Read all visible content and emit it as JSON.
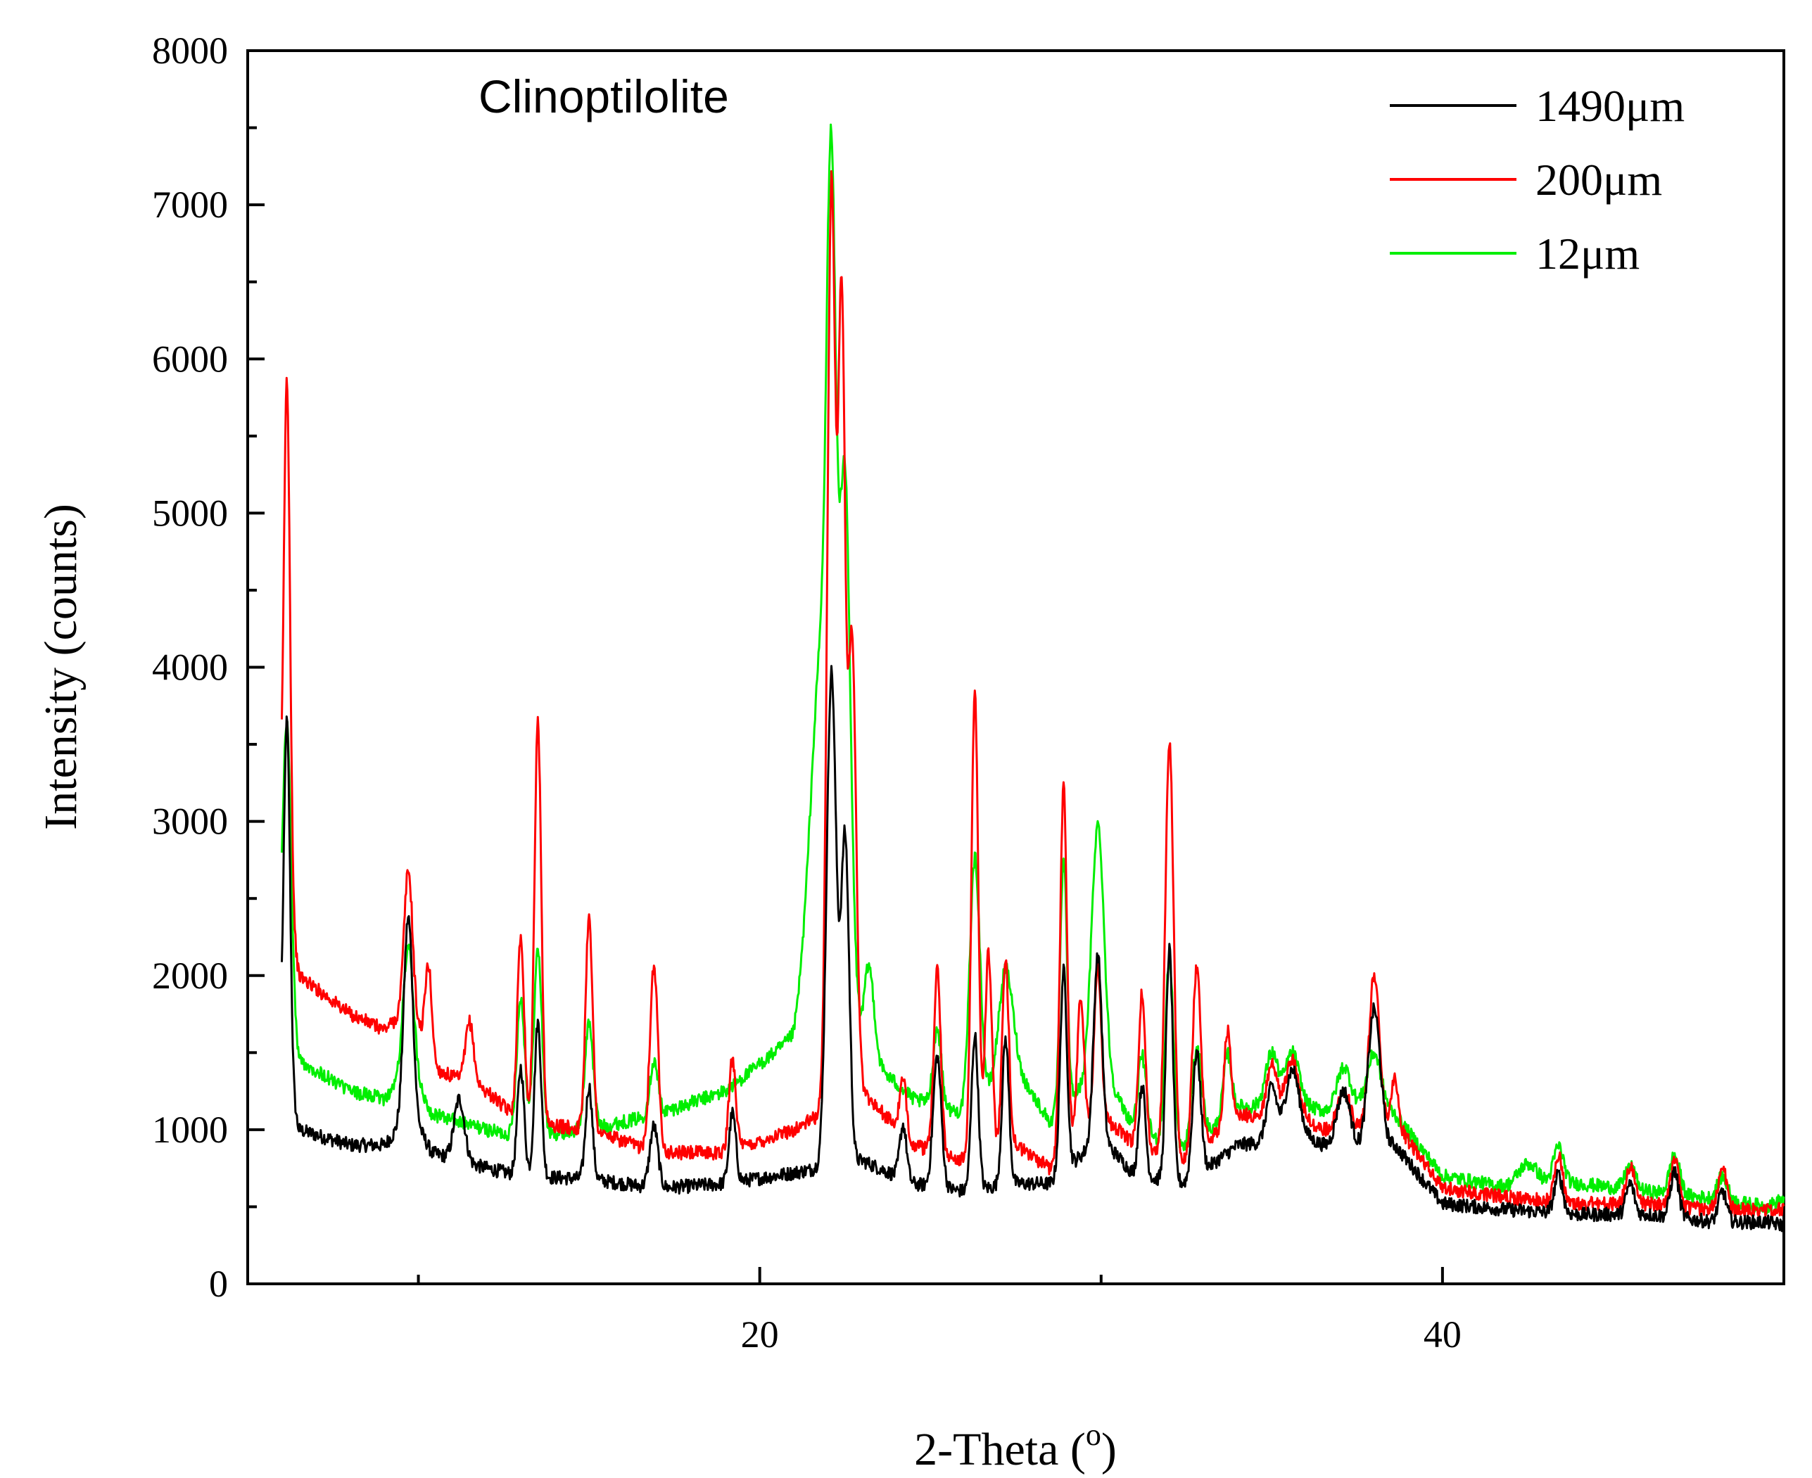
{
  "chart_data": {
    "type": "line",
    "annotation": "Clinoptilolite",
    "xlabel": "2-Theta (",
    "xlabel_sup": "o",
    "xlabel_end": ")",
    "ylabel": "Intensity (counts)",
    "xlim": [
      5,
      50
    ],
    "ylim": [
      0,
      8000
    ],
    "x_ticks": [
      20,
      40
    ],
    "y_ticks": [
      0,
      1000,
      2000,
      3000,
      4000,
      5000,
      6000,
      7000,
      8000
    ],
    "legend_position": "top-right",
    "series": [
      {
        "name": "1490μm",
        "color": "#000000",
        "baseline": [
          [
            6,
            1500
          ],
          [
            6.5,
            1000
          ],
          [
            8,
            900
          ],
          [
            9,
            900
          ],
          [
            9.8,
            1100
          ],
          [
            10.4,
            850
          ],
          [
            12,
            750
          ],
          [
            13,
            700
          ],
          [
            15,
            680
          ],
          [
            17,
            620
          ],
          [
            19,
            650
          ],
          [
            21,
            720
          ],
          [
            23,
            800
          ],
          [
            24.5,
            650
          ],
          [
            26,
            600
          ],
          [
            27.5,
            650
          ],
          [
            28.5,
            650
          ],
          [
            30,
            950
          ],
          [
            31,
            700
          ],
          [
            32.5,
            650
          ],
          [
            34,
            900
          ],
          [
            36,
            950
          ],
          [
            37,
            850
          ],
          [
            38.6,
            900
          ],
          [
            40,
            520
          ],
          [
            42,
            480
          ],
          [
            44,
            450
          ],
          [
            46,
            450
          ],
          [
            48,
            400
          ],
          [
            49.5,
            400
          ],
          [
            50,
            380
          ]
        ],
        "peaks": [
          [
            6.15,
            2300,
            0.09
          ],
          [
            9.7,
            1300,
            0.13
          ],
          [
            11.2,
            400,
            0.15
          ],
          [
            13.0,
            700,
            0.1
          ],
          [
            13.5,
            1000,
            0.1
          ],
          [
            15.0,
            600,
            0.1
          ],
          [
            16.9,
            400,
            0.12
          ],
          [
            19.2,
            450,
            0.1
          ],
          [
            22.1,
            3200,
            0.14
          ],
          [
            22.5,
            2100,
            0.12
          ],
          [
            24.2,
            350,
            0.1
          ],
          [
            25.2,
            850,
            0.12
          ],
          [
            26.3,
            1000,
            0.1
          ],
          [
            27.2,
            950,
            0.1
          ],
          [
            28.9,
            1300,
            0.1
          ],
          [
            29.9,
            1200,
            0.12
          ],
          [
            31.2,
            600,
            0.1
          ],
          [
            32.0,
            1500,
            0.1
          ],
          [
            32.8,
            800,
            0.12
          ],
          [
            35.0,
            350,
            0.15
          ],
          [
            35.6,
            450,
            0.2
          ],
          [
            37.1,
            400,
            0.2
          ],
          [
            38.0,
            900,
            0.18
          ],
          [
            43.4,
            250,
            0.12
          ],
          [
            45.5,
            200,
            0.12
          ],
          [
            46.8,
            300,
            0.12
          ],
          [
            48.2,
            200,
            0.12
          ]
        ]
      },
      {
        "name": "200μm",
        "color": "#ff0000",
        "baseline": [
          [
            6,
            2800
          ],
          [
            6.5,
            2000
          ],
          [
            8,
            1750
          ],
          [
            9,
            1650
          ],
          [
            9.8,
            1800
          ],
          [
            10.4,
            1400
          ],
          [
            12,
            1250
          ],
          [
            13,
            1050
          ],
          [
            15,
            1000
          ],
          [
            17,
            850
          ],
          [
            19,
            850
          ],
          [
            21,
            1000
          ],
          [
            23,
            1250
          ],
          [
            24.5,
            900
          ],
          [
            26,
            800
          ],
          [
            27.5,
            900
          ],
          [
            28.5,
            750
          ],
          [
            30,
            1100
          ],
          [
            31,
            900
          ],
          [
            32.5,
            800
          ],
          [
            34,
            1100
          ],
          [
            36,
            1050
          ],
          [
            37,
            950
          ],
          [
            38.6,
            1050
          ],
          [
            40,
            620
          ],
          [
            42,
            560
          ],
          [
            44,
            520
          ],
          [
            46,
            520
          ],
          [
            48,
            480
          ],
          [
            49.5,
            480
          ],
          [
            50,
            480
          ]
        ],
        "peaks": [
          [
            6.15,
            3300,
            0.09
          ],
          [
            9.7,
            900,
            0.12
          ],
          [
            10.3,
            600,
            0.1
          ],
          [
            11.5,
            400,
            0.12
          ],
          [
            13.0,
            1200,
            0.1
          ],
          [
            13.5,
            2600,
            0.1
          ],
          [
            15.0,
            1400,
            0.1
          ],
          [
            16.9,
            1200,
            0.12
          ],
          [
            19.2,
            600,
            0.1
          ],
          [
            22.1,
            6000,
            0.12
          ],
          [
            22.4,
            5000,
            0.1
          ],
          [
            22.7,
            3000,
            0.12
          ],
          [
            24.2,
            350,
            0.1
          ],
          [
            25.2,
            1200,
            0.1
          ],
          [
            26.3,
            3000,
            0.1
          ],
          [
            26.7,
            1300,
            0.1
          ],
          [
            27.2,
            1200,
            0.1
          ],
          [
            28.9,
            2400,
            0.1
          ],
          [
            29.4,
            900,
            0.1
          ],
          [
            29.9,
            1000,
            0.1
          ],
          [
            31.2,
            1000,
            0.1
          ],
          [
            32.0,
            2700,
            0.12
          ],
          [
            32.8,
            1200,
            0.12
          ],
          [
            33.7,
            600,
            0.1
          ],
          [
            35.0,
            350,
            0.15
          ],
          [
            35.6,
            400,
            0.2
          ],
          [
            37.1,
            300,
            0.2
          ],
          [
            38.0,
            1000,
            0.15
          ],
          [
            38.6,
            300,
            0.1
          ],
          [
            43.4,
            300,
            0.12
          ],
          [
            45.5,
            250,
            0.12
          ],
          [
            46.8,
            300,
            0.12
          ],
          [
            48.2,
            300,
            0.12
          ]
        ]
      },
      {
        "name": "12μm",
        "color": "#00ee00",
        "baseline": [
          [
            6,
            2000
          ],
          [
            6.5,
            1450
          ],
          [
            8,
            1250
          ],
          [
            9,
            1200
          ],
          [
            9.8,
            1400
          ],
          [
            10.4,
            1100
          ],
          [
            12,
            1000
          ],
          [
            13,
            950
          ],
          [
            15,
            1000
          ],
          [
            17,
            1100
          ],
          [
            19,
            1250
          ],
          [
            21,
            1600
          ],
          [
            22,
            2800
          ],
          [
            22.5,
            2400
          ],
          [
            23,
            1500
          ],
          [
            24.5,
            1200
          ],
          [
            26,
            1100
          ],
          [
            27.5,
            1400
          ],
          [
            28.5,
            1050
          ],
          [
            30,
            1400
          ],
          [
            31,
            1000
          ],
          [
            32.5,
            850
          ],
          [
            34,
            1150
          ],
          [
            36,
            1150
          ],
          [
            37,
            1100
          ],
          [
            38,
            1200
          ],
          [
            38.6,
            1100
          ],
          [
            40,
            700
          ],
          [
            42,
            620
          ],
          [
            44,
            650
          ],
          [
            46,
            600
          ],
          [
            48,
            550
          ],
          [
            49.5,
            500
          ],
          [
            50,
            550
          ]
        ],
        "peaks": [
          [
            6.15,
            1800,
            0.12
          ],
          [
            9.7,
            800,
            0.15
          ],
          [
            13.0,
            900,
            0.12
          ],
          [
            13.5,
            1200,
            0.12
          ],
          [
            15.0,
            700,
            0.12
          ],
          [
            16.9,
            350,
            0.12
          ],
          [
            21.8,
            1600,
            0.3
          ],
          [
            22.1,
            3700,
            0.13
          ],
          [
            22.5,
            2800,
            0.15
          ],
          [
            23.2,
            600,
            0.15
          ],
          [
            25.2,
            500,
            0.12
          ],
          [
            26.3,
            1600,
            0.15
          ],
          [
            27.2,
            700,
            0.2
          ],
          [
            28.9,
            1600,
            0.1
          ],
          [
            29.9,
            1600,
            0.18
          ],
          [
            31.2,
            500,
            0.12
          ],
          [
            32.0,
            1200,
            0.12
          ],
          [
            32.8,
            600,
            0.15
          ],
          [
            33.7,
            400,
            0.12
          ],
          [
            35.0,
            350,
            0.18
          ],
          [
            35.6,
            350,
            0.2
          ],
          [
            37.1,
            300,
            0.2
          ],
          [
            38.0,
            300,
            0.2
          ],
          [
            42.5,
            150,
            0.3
          ],
          [
            43.4,
            250,
            0.15
          ],
          [
            45.5,
            150,
            0.15
          ],
          [
            46.8,
            250,
            0.15
          ],
          [
            48.2,
            150,
            0.15
          ]
        ]
      }
    ]
  }
}
